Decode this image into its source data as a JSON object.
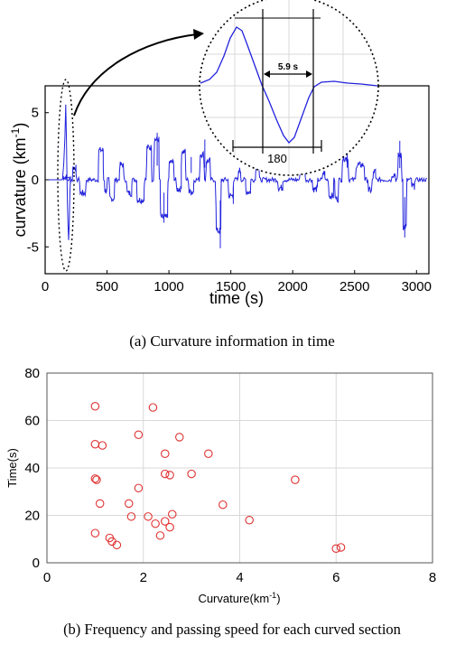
{
  "chart_data": [
    {
      "type": "line",
      "caption": "(a)  Curvature information in time",
      "xlabel": "time (s)",
      "ylabel_main": "curvature (km",
      "ylabel_sup": "-1",
      "ylabel_close": ")",
      "xlim": [
        0,
        3100
      ],
      "ylim": [
        -7,
        7
      ],
      "xticks": [
        0,
        500,
        1000,
        1500,
        2000,
        2500,
        3000
      ],
      "yticks": [
        5,
        0,
        -5
      ],
      "grid": false,
      "line_color": "#2222dd",
      "segments": [
        {
          "t0": 140,
          "t1": 175,
          "v": 0.2
        },
        {
          "t0": 222,
          "t1": 250,
          "v": 0.9
        },
        {
          "t0": 280,
          "t1": 330,
          "v": -1.0
        },
        {
          "t0": 430,
          "t1": 470,
          "v": 2.2
        },
        {
          "t0": 480,
          "t1": 500,
          "v": -0.8
        },
        {
          "t0": 520,
          "t1": 560,
          "v": -1.4
        },
        {
          "t0": 600,
          "t1": 635,
          "v": 1.1
        },
        {
          "t0": 660,
          "t1": 700,
          "v": -1.0
        },
        {
          "t0": 740,
          "t1": 800,
          "v": -1.5
        },
        {
          "t0": 820,
          "t1": 860,
          "v": 2.4
        },
        {
          "t0": 880,
          "t1": 920,
          "v": 3.0
        },
        {
          "t0": 930,
          "t1": 990,
          "v": -2.8
        },
        {
          "t0": 1000,
          "t1": 1040,
          "v": 1.3
        },
        {
          "t0": 1060,
          "t1": 1100,
          "v": -0.7
        },
        {
          "t0": 1100,
          "t1": 1135,
          "v": 2.1
        },
        {
          "t0": 1160,
          "t1": 1200,
          "v": -0.9
        },
        {
          "t0": 1250,
          "t1": 1285,
          "v": 1.9
        },
        {
          "t0": 1300,
          "t1": 1335,
          "v": 1.4
        },
        {
          "t0": 1380,
          "t1": 1420,
          "v": -3.8
        },
        {
          "t0": 1480,
          "t1": 1520,
          "v": -1.2
        },
        {
          "t0": 1560,
          "t1": 1580,
          "v": 0.7
        },
        {
          "t0": 1620,
          "t1": 1660,
          "v": -0.9
        },
        {
          "t0": 1700,
          "t1": 1730,
          "v": 1.0
        },
        {
          "t0": 1880,
          "t1": 1920,
          "v": -0.6
        },
        {
          "t0": 2060,
          "t1": 2100,
          "v": 1.0
        },
        {
          "t0": 2160,
          "t1": 2200,
          "v": -0.7
        },
        {
          "t0": 2240,
          "t1": 2260,
          "v": 0.5
        },
        {
          "t0": 2290,
          "t1": 2330,
          "v": -1.2
        },
        {
          "t0": 2340,
          "t1": 2370,
          "v": -1.4
        },
        {
          "t0": 2400,
          "t1": 2450,
          "v": 1.6
        },
        {
          "t0": 2510,
          "t1": 2580,
          "v": 1.1
        },
        {
          "t0": 2610,
          "t1": 2640,
          "v": -0.8
        },
        {
          "t0": 2650,
          "t1": 2670,
          "v": 0.6
        },
        {
          "t0": 2800,
          "t1": 2830,
          "v": 0.4
        },
        {
          "t0": 2850,
          "t1": 2880,
          "v": 1.8
        },
        {
          "t0": 2890,
          "t1": 2920,
          "v": -3.5
        },
        {
          "t0": 2960,
          "t1": 2985,
          "v": -0.5
        }
      ],
      "inset": {
        "label_duration": "5.9 s",
        "label_length": "180"
      }
    },
    {
      "type": "scatter",
      "caption": "(b)  Frequency and passing speed for each curved section",
      "xlabel_main": "Curvature(km",
      "xlabel_sup": "-1",
      "xlabel_close": ")",
      "ylabel": "Time(s)",
      "xlim": [
        0,
        8
      ],
      "ylim": [
        0,
        80
      ],
      "xticks": [
        0,
        2,
        4,
        6,
        8
      ],
      "yticks": [
        0,
        20,
        40,
        60,
        80
      ],
      "grid": true,
      "marker_color": "#e03030",
      "points": [
        {
          "x": 1.0,
          "y": 66
        },
        {
          "x": 2.2,
          "y": 65.5
        },
        {
          "x": 1.0,
          "y": 50
        },
        {
          "x": 1.15,
          "y": 49.5
        },
        {
          "x": 1.9,
          "y": 54
        },
        {
          "x": 2.75,
          "y": 53
        },
        {
          "x": 2.45,
          "y": 46
        },
        {
          "x": 3.35,
          "y": 46
        },
        {
          "x": 1.0,
          "y": 35.5
        },
        {
          "x": 1.03,
          "y": 35
        },
        {
          "x": 2.45,
          "y": 37.5
        },
        {
          "x": 2.55,
          "y": 37
        },
        {
          "x": 3.0,
          "y": 37.5
        },
        {
          "x": 5.15,
          "y": 35
        },
        {
          "x": 1.9,
          "y": 31.5
        },
        {
          "x": 1.1,
          "y": 25
        },
        {
          "x": 1.7,
          "y": 25
        },
        {
          "x": 3.65,
          "y": 24.5
        },
        {
          "x": 1.75,
          "y": 19.5
        },
        {
          "x": 2.1,
          "y": 19.5
        },
        {
          "x": 2.6,
          "y": 20.5
        },
        {
          "x": 2.25,
          "y": 16.5
        },
        {
          "x": 2.45,
          "y": 17.5
        },
        {
          "x": 2.55,
          "y": 15
        },
        {
          "x": 4.2,
          "y": 18
        },
        {
          "x": 1.0,
          "y": 12.5
        },
        {
          "x": 2.35,
          "y": 11.5
        },
        {
          "x": 1.3,
          "y": 10.5
        },
        {
          "x": 1.35,
          "y": 9
        },
        {
          "x": 1.45,
          "y": 7.5
        },
        {
          "x": 6.0,
          "y": 6
        },
        {
          "x": 6.1,
          "y": 6.5
        }
      ]
    }
  ]
}
